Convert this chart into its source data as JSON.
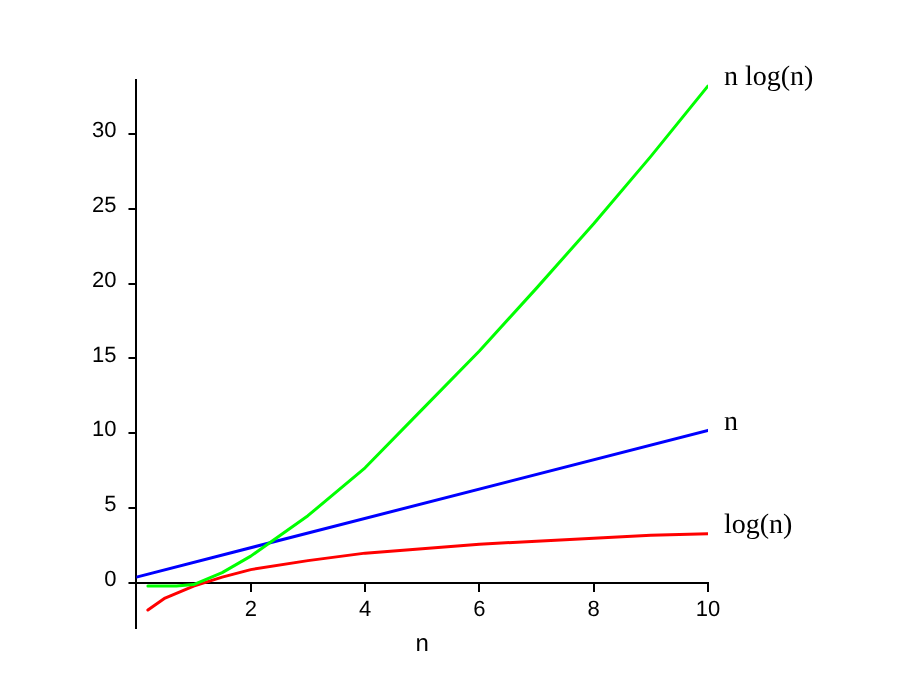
{
  "chart_data": {
    "type": "line",
    "xlabel": "n",
    "xlim": [
      0,
      10
    ],
    "xticks": [
      2,
      4,
      6,
      8,
      10
    ],
    "ylim": [
      -3,
      33.6
    ],
    "yticks": [
      0,
      5,
      10,
      15,
      20,
      25,
      30
    ],
    "grid": false,
    "legend": false,
    "marker": "none",
    "series": [
      {
        "name": "n log(n)",
        "color": "#00ff00",
        "x": [
          0.2,
          0.7,
          1,
          1.5,
          2,
          3,
          4,
          5,
          6,
          7,
          8,
          9,
          10
        ],
        "values": [
          -0.2,
          -0.2,
          -0.1,
          0.7,
          1.8,
          4.5,
          7.7,
          11.6,
          15.5,
          19.7,
          24,
          28.5,
          33.2
        ]
      },
      {
        "name": "n",
        "color": "#0000ff",
        "x": [
          0,
          10
        ],
        "values": [
          0.4,
          10.2
        ]
      },
      {
        "name": "log(n)",
        "color": "#ff0000",
        "x": [
          0.2,
          0.5,
          1,
          1.5,
          2,
          3,
          4,
          5,
          6,
          7,
          8,
          9,
          10
        ],
        "values": [
          -1.8,
          -1,
          -0.2,
          0.4,
          0.9,
          1.5,
          2,
          2.3,
          2.6,
          2.8,
          3,
          3.2,
          3.3
        ]
      }
    ]
  }
}
